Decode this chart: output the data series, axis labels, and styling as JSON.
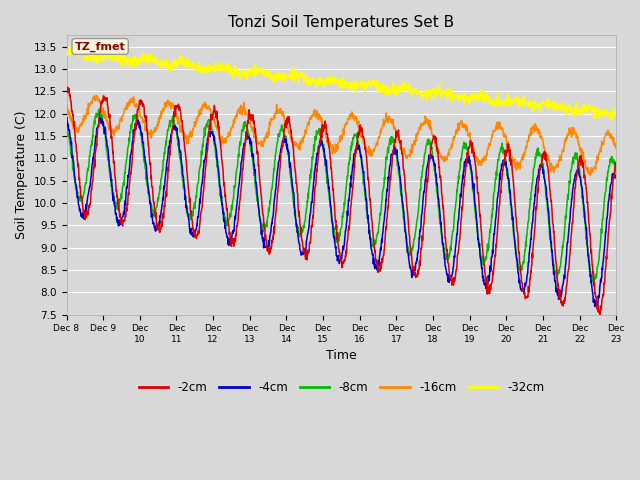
{
  "title": "Tonzi Soil Temperatures Set B",
  "xlabel": "Time",
  "ylabel": "Soil Temperature (C)",
  "ylim": [
    7.5,
    13.75
  ],
  "xlim": [
    0,
    360
  ],
  "background_color": "#d8d8d8",
  "plot_bg_color": "#d8d8d8",
  "grid_color": "white",
  "annotation_text": "TZ_fmet",
  "annotation_color": "#8b0000",
  "annotation_bg": "#f5f5dc",
  "series_colors": {
    "-2cm": "#dd0000",
    "-4cm": "#0000cc",
    "-8cm": "#00bb00",
    "-16cm": "#ff8800",
    "-32cm": "#ffff00"
  },
  "legend_entries": [
    "-2cm",
    "-4cm",
    "-8cm",
    "-16cm",
    "-32cm"
  ],
  "xtick_labels": [
    "Dec 8",
    "Dec 9",
    "Dec 10",
    "Dec 11",
    "Dec 12",
    "Dec 13",
    "Dec 14",
    "Dec 15",
    "Dec 16",
    "Dec 17",
    "Dec 18",
    "Dec 19",
    "Dec 20",
    "Dec 21",
    "Dec 22",
    "Dec 23"
  ],
  "xtick_positions": [
    0,
    24,
    48,
    72,
    96,
    120,
    144,
    168,
    192,
    216,
    240,
    264,
    288,
    312,
    336,
    360
  ],
  "figsize": [
    6.4,
    4.8
  ],
  "dpi": 100
}
